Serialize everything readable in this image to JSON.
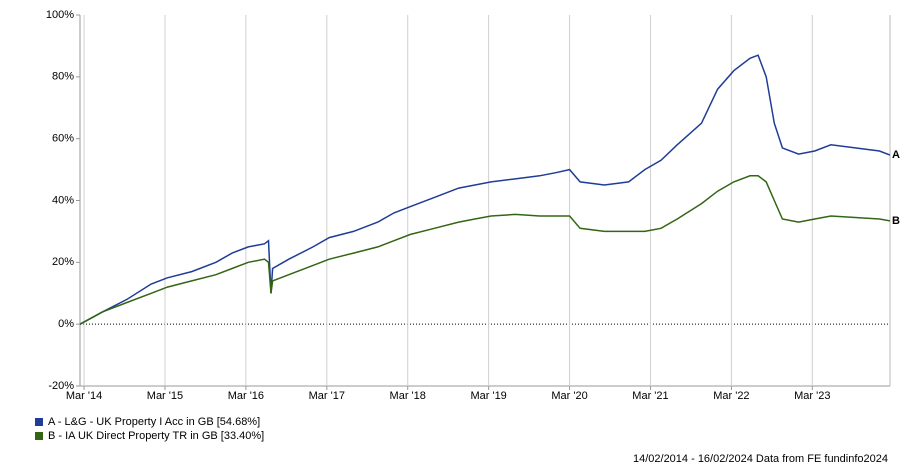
{
  "chart_data": {
    "type": "line",
    "source": "14/02/2014 - 16/02/2024 Data from FE fundinfo2024",
    "xlim": [
      2014.12,
      2024.13
    ],
    "xticks": [
      {
        "value": 2014.17,
        "label": "Mar '14"
      },
      {
        "value": 2015.17,
        "label": "Mar '15"
      },
      {
        "value": 2016.17,
        "label": "Mar '16"
      },
      {
        "value": 2017.17,
        "label": "Mar '17"
      },
      {
        "value": 2018.17,
        "label": "Mar '18"
      },
      {
        "value": 2019.17,
        "label": "Mar '19"
      },
      {
        "value": 2020.17,
        "label": "Mar '20"
      },
      {
        "value": 2021.17,
        "label": "Mar '21"
      },
      {
        "value": 2022.17,
        "label": "Mar '22"
      },
      {
        "value": 2023.17,
        "label": "Mar '23"
      }
    ],
    "ylim": [
      -20,
      100
    ],
    "yticks": [
      {
        "value": -20,
        "label": "-20%"
      },
      {
        "value": 0,
        "label": "0%"
      },
      {
        "value": 20,
        "label": "20%"
      },
      {
        "value": 40,
        "label": "40%"
      },
      {
        "value": 60,
        "label": "60%"
      },
      {
        "value": 80,
        "label": "80%"
      },
      {
        "value": 100,
        "label": "100%"
      }
    ],
    "grid": "x",
    "legend": "bottom-left",
    "x": [
      2014.12,
      2014.4,
      2014.7,
      2015.0,
      2015.2,
      2015.5,
      2015.8,
      2016.0,
      2016.2,
      2016.4,
      2016.45,
      2016.48,
      2016.5,
      2016.7,
      2017.0,
      2017.2,
      2017.5,
      2017.8,
      2018.0,
      2018.2,
      2018.5,
      2018.8,
      2019.0,
      2019.2,
      2019.5,
      2019.8,
      2020.0,
      2020.17,
      2020.3,
      2020.6,
      2020.9,
      2021.1,
      2021.3,
      2021.5,
      2021.8,
      2022.0,
      2022.2,
      2022.4,
      2022.5,
      2022.6,
      2022.7,
      2022.8,
      2023.0,
      2023.2,
      2023.4,
      2023.7,
      2024.0,
      2024.13
    ],
    "series": [
      {
        "name": "A - L&G - UK Property I Acc in GB [54.68%]",
        "end_label": "A",
        "color": "#1f3d96",
        "values": [
          0,
          4,
          8,
          13,
          15,
          17,
          20,
          23,
          25,
          26,
          27,
          10,
          18,
          21,
          25,
          28,
          30,
          33,
          36,
          38,
          41,
          44,
          45,
          46,
          47,
          48,
          49,
          50,
          46,
          45,
          46,
          50,
          53,
          58,
          65,
          76,
          82,
          86,
          87,
          80,
          65,
          57,
          55,
          56,
          58,
          57,
          56,
          54.68
        ]
      },
      {
        "name": "B - IA UK Direct Property TR in GB [33.40%]",
        "end_label": "B",
        "color": "#336614",
        "values": [
          0,
          4,
          7,
          10,
          12,
          14,
          16,
          18,
          20,
          21,
          20,
          10,
          14,
          16,
          19,
          21,
          23,
          25,
          27,
          29,
          31,
          33,
          34,
          35,
          35.5,
          35,
          35,
          35,
          31,
          30,
          30,
          30,
          31,
          34,
          39,
          43,
          46,
          48,
          48,
          46,
          40,
          34,
          33,
          34,
          35,
          34.5,
          34,
          33.4
        ]
      }
    ]
  }
}
